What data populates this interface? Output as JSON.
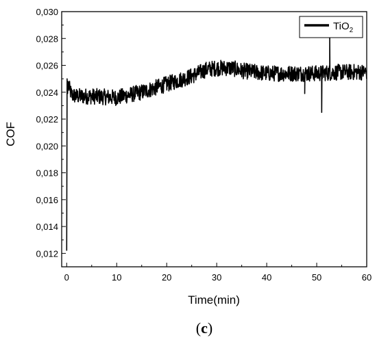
{
  "chart_data": {
    "type": "line",
    "xlabel": "Time(min)",
    "ylabel": "COF",
    "xlim": [
      -1,
      60
    ],
    "ylim": [
      0.011,
      0.03
    ],
    "x_ticks": [
      0,
      10,
      20,
      30,
      40,
      50,
      60
    ],
    "x_tick_labels": [
      "0",
      "10",
      "20",
      "30",
      "40",
      "50",
      "60"
    ],
    "y_ticks": [
      0.012,
      0.014,
      0.016,
      0.018,
      0.02,
      0.022,
      0.024,
      0.026,
      0.028,
      0.03
    ],
    "y_tick_labels": [
      "0,012",
      "0,014",
      "0,016",
      "0,018",
      "0,020",
      "0,022",
      "0,024",
      "0,026",
      "0,028",
      "0,030"
    ],
    "grid": false,
    "legend_position": "top-right",
    "line_color": "#000000",
    "series": [
      {
        "name_main": "TiO",
        "name_sub": "2",
        "trend_x": [
          0,
          0.1,
          0.25,
          0.5,
          1,
          2,
          5,
          10,
          15,
          20,
          25,
          28,
          30,
          33,
          35,
          40,
          45,
          50,
          55,
          60
        ],
        "trend_y": [
          0.0122,
          0.025,
          0.0248,
          0.0243,
          0.0238,
          0.0237,
          0.0237,
          0.0236,
          0.024,
          0.0246,
          0.0252,
          0.0257,
          0.0258,
          0.0258,
          0.0256,
          0.0254,
          0.0254,
          0.0254,
          0.0255,
          0.0255
        ],
        "noise_amplitude": 0.0006,
        "spikes": [
          {
            "x": 51.0,
            "y": 0.0225
          },
          {
            "x": 52.6,
            "y": 0.0282
          },
          {
            "x": 47.6,
            "y": 0.0239
          }
        ]
      }
    ]
  },
  "panel_label": {
    "open": "(",
    "letter": "c",
    "close": ")"
  }
}
